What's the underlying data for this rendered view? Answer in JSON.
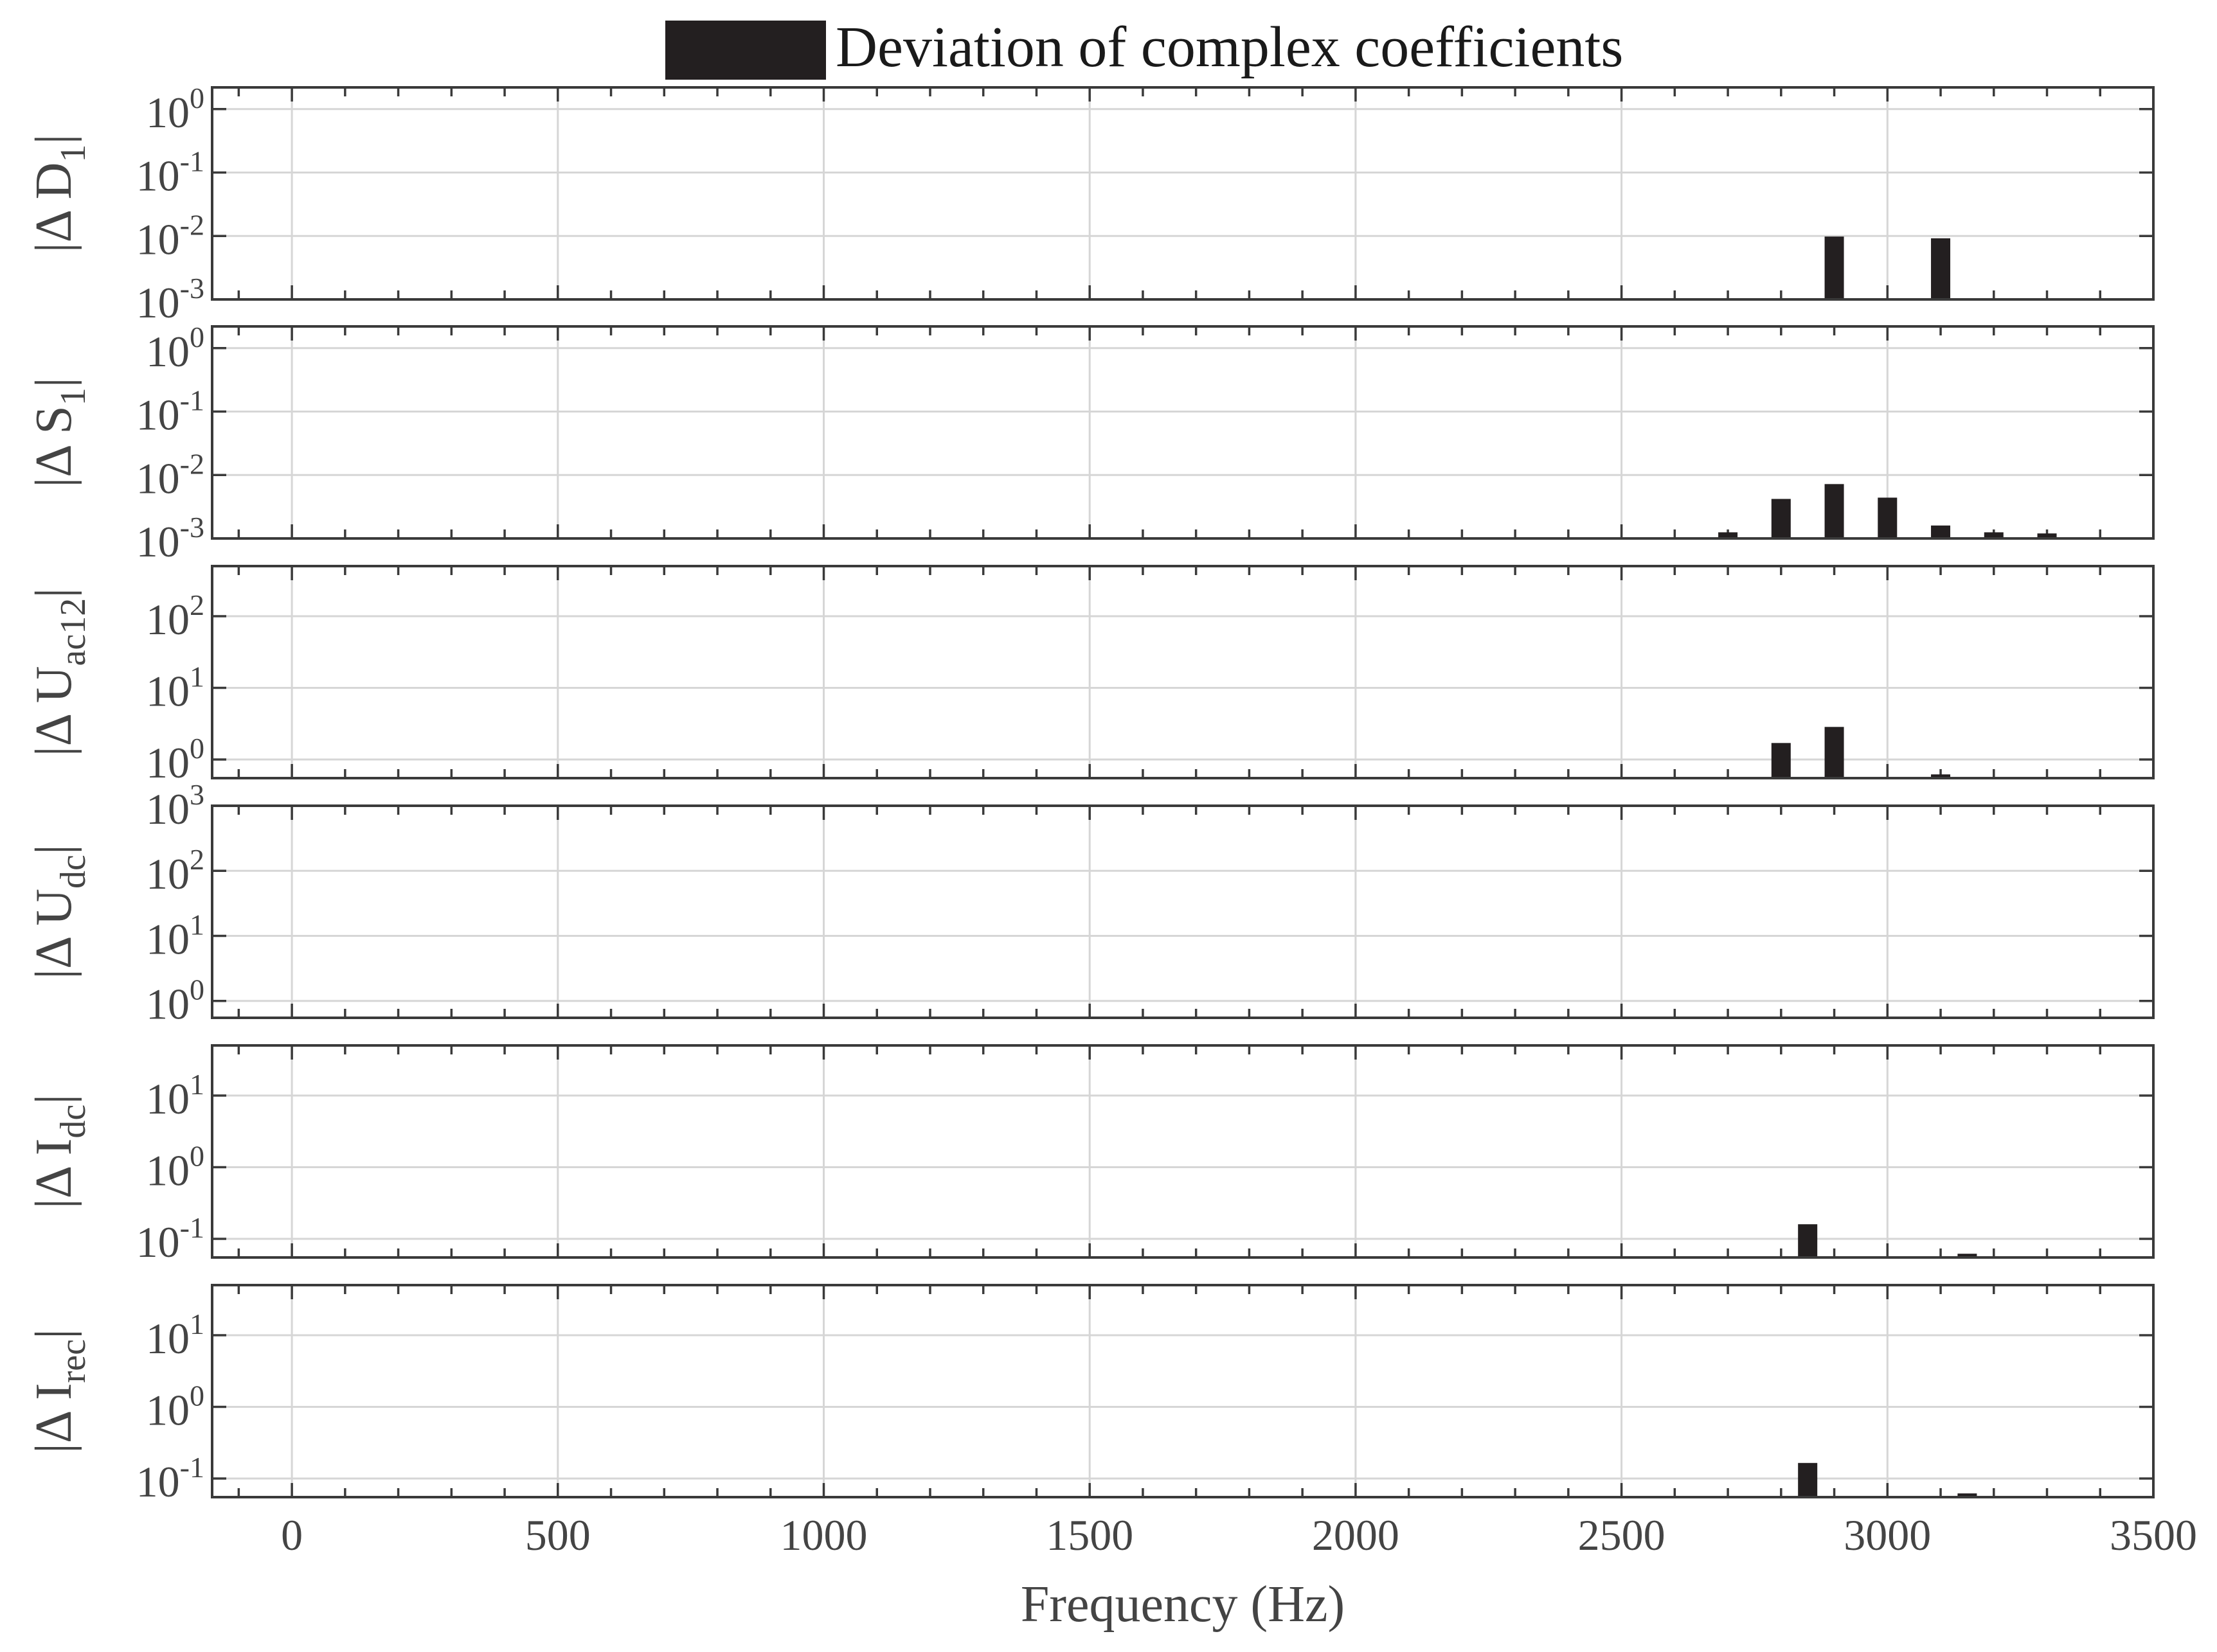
{
  "legend": {
    "label": "Deviation of complex coefficients",
    "swatch_color": "#231f20"
  },
  "xaxis": {
    "label": "Frequency (Hz)",
    "xlim": [
      -150,
      3500
    ],
    "ticks": [
      0,
      500,
      1000,
      1500,
      2000,
      2500,
      3000,
      3500
    ],
    "tick_labels": [
      "0",
      "500",
      "1000",
      "1500",
      "2000",
      "2500",
      "3000",
      "3500"
    ]
  },
  "chart_data": [
    {
      "type": "bar",
      "ylabel": {
        "base": "|Δ D",
        "sub": "1",
        "close": "|"
      },
      "yscale": "log",
      "ylim": [
        0.001,
        2.2
      ],
      "yticks": [
        {
          "base": "10",
          "exp": "0"
        },
        {
          "base": "10",
          "exp": "-1"
        },
        {
          "base": "10",
          "exp": "-2"
        },
        {
          "base": "10",
          "exp": "-3"
        }
      ],
      "ytick_values": [
        1,
        0.1,
        0.01,
        0.001
      ],
      "x": [
        2900,
        3100
      ],
      "values": [
        0.0098,
        0.0092
      ]
    },
    {
      "type": "bar",
      "ylabel": {
        "base": "|Δ S",
        "sub": "1",
        "close": "|"
      },
      "yscale": "log",
      "ylim": [
        0.001,
        2.2
      ],
      "yticks": [
        {
          "base": "10",
          "exp": "0"
        },
        {
          "base": "10",
          "exp": "-1"
        },
        {
          "base": "10",
          "exp": "-2"
        },
        {
          "base": "10",
          "exp": "-3"
        }
      ],
      "ytick_values": [
        1,
        0.1,
        0.01,
        0.001
      ],
      "x": [
        2700,
        2800,
        2900,
        3000,
        3100,
        3200,
        3300
      ],
      "values": [
        0.00125,
        0.0042,
        0.0072,
        0.0044,
        0.0016,
        0.00125,
        0.0012
      ]
    },
    {
      "type": "bar",
      "ylabel": {
        "base": "|Δ U",
        "sub": "ac12",
        "close": "|"
      },
      "yscale": "log",
      "ylim": [
        0.55,
        500
      ],
      "yticks": [
        {
          "base": "10",
          "exp": "2"
        },
        {
          "base": "10",
          "exp": "1"
        },
        {
          "base": "10",
          "exp": "0"
        }
      ],
      "ytick_values": [
        100,
        10,
        1
      ],
      "x": [
        2800,
        2900,
        3100
      ],
      "values": [
        1.7,
        2.85,
        0.62
      ]
    },
    {
      "type": "bar",
      "ylabel": {
        "base": "|Δ U",
        "sub": "dc",
        "close": "|"
      },
      "yscale": "log",
      "ylim": [
        0.55,
        1000
      ],
      "yticks": [
        {
          "base": "10",
          "exp": "3"
        },
        {
          "base": "10",
          "exp": "2"
        },
        {
          "base": "10",
          "exp": "1"
        },
        {
          "base": "10",
          "exp": "0"
        }
      ],
      "ytick_values": [
        1000,
        100,
        10,
        1
      ],
      "x": [],
      "values": []
    },
    {
      "type": "bar",
      "ylabel": {
        "base": "|Δ I",
        "sub": "dc",
        "close": "|"
      },
      "yscale": "log",
      "ylim": [
        0.055,
        50
      ],
      "yticks": [
        {
          "base": "10",
          "exp": "1"
        },
        {
          "base": "10",
          "exp": "0"
        },
        {
          "base": "10",
          "exp": "-1"
        }
      ],
      "ytick_values": [
        10,
        1,
        0.1
      ],
      "x": [
        2850,
        3150
      ],
      "values": [
        0.16,
        0.062
      ]
    },
    {
      "type": "bar",
      "ylabel": {
        "base": "|Δ I",
        "sub": "rec",
        "close": "|"
      },
      "yscale": "log",
      "ylim": [
        0.055,
        50
      ],
      "yticks": [
        {
          "base": "10",
          "exp": "1"
        },
        {
          "base": "10",
          "exp": "0"
        },
        {
          "base": "10",
          "exp": "-1"
        }
      ],
      "ytick_values": [
        10,
        1,
        0.1
      ],
      "x": [
        2850,
        3150
      ],
      "values": [
        0.165,
        0.062
      ]
    }
  ]
}
